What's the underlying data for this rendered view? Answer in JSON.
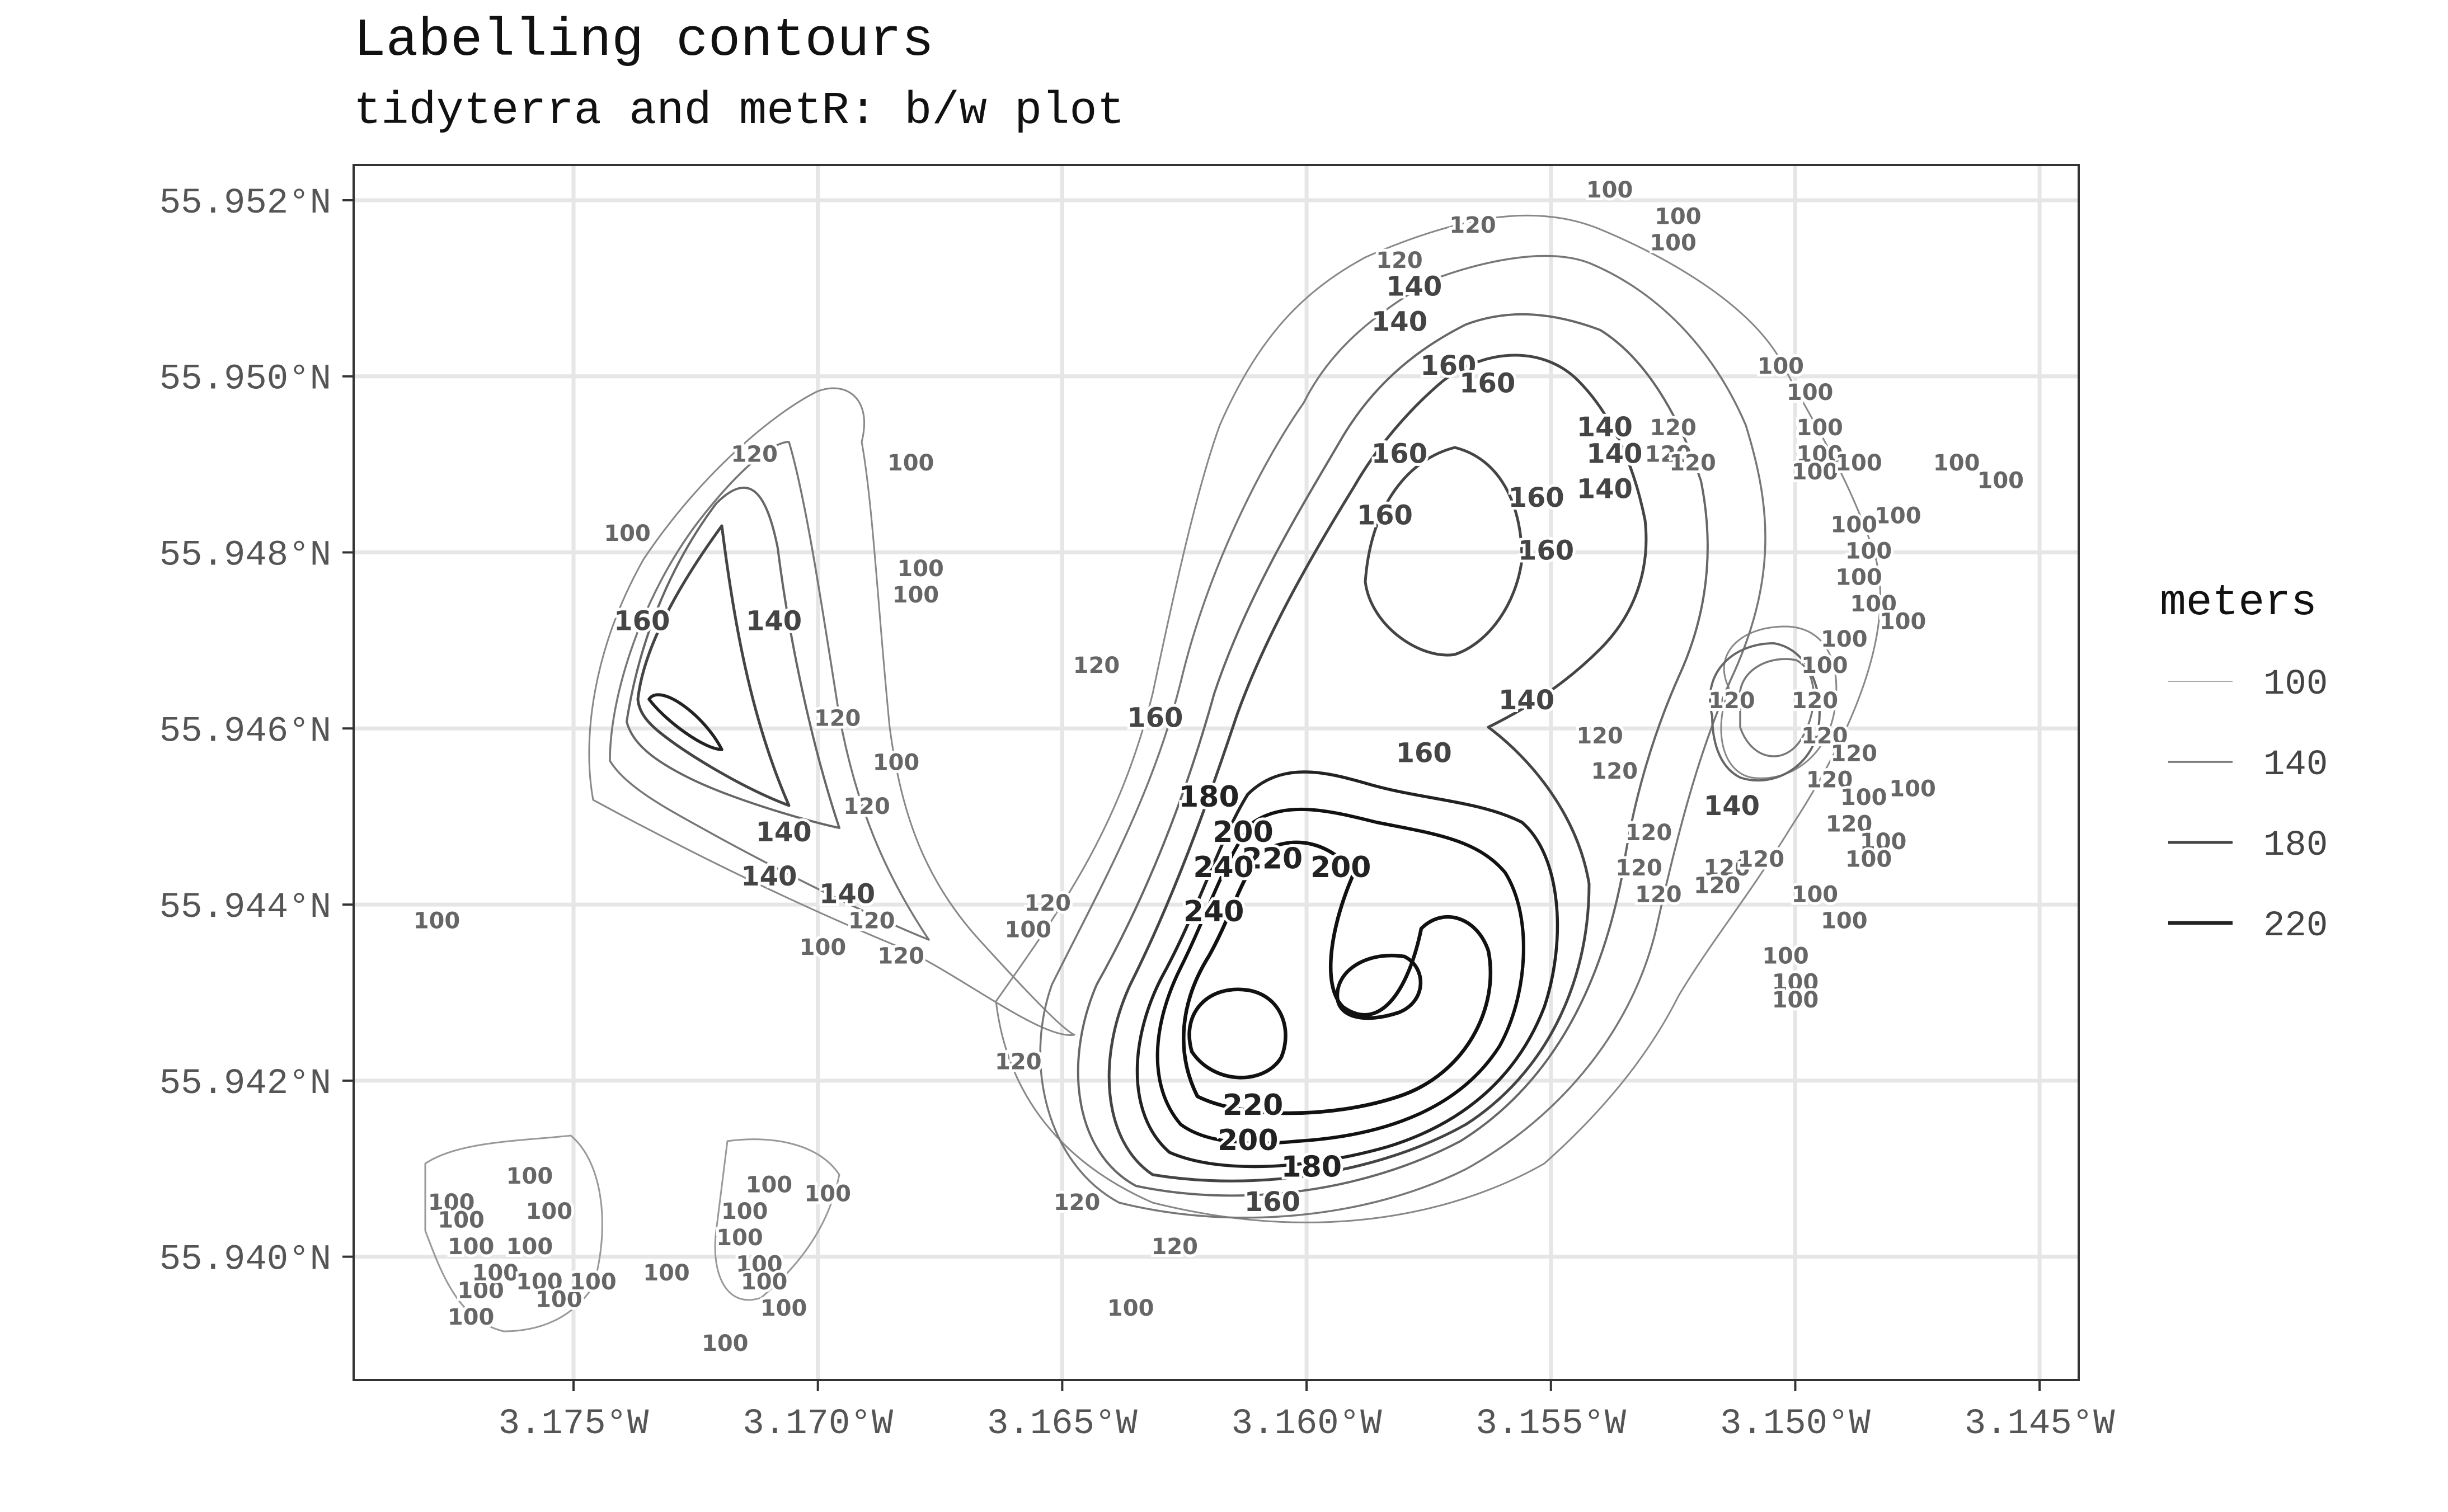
{
  "chart_data": {
    "type": "contour",
    "title": "Labelling contours",
    "subtitle": "tidyterra and metR: b/w plot",
    "x_ticks": [
      "3.175°W",
      "3.170°W",
      "3.165°W",
      "3.160°W",
      "3.155°W",
      "3.150°W",
      "3.145°W"
    ],
    "y_ticks": [
      "55.952°N",
      "55.950°N",
      "55.948°N",
      "55.946°N",
      "55.944°N",
      "55.942°N",
      "55.940°N"
    ],
    "xlim": [
      -3.1795,
      -3.1442
    ],
    "ylim": [
      55.9386,
      55.9524
    ],
    "grid": true,
    "legend": {
      "title": "meters",
      "position": "right",
      "entries": [
        {
          "label": "100",
          "level": 100
        },
        {
          "label": "140",
          "level": 140
        },
        {
          "label": "180",
          "level": 180
        },
        {
          "label": "220",
          "level": 220
        }
      ]
    },
    "colors": {
      "contour": "#333333",
      "grid": "#e6e6e6",
      "panel_border": "#333333"
    },
    "contour_levels": [
      100,
      120,
      140,
      160,
      180,
      200,
      220,
      240
    ],
    "contour_labels": [
      {
        "text": "100",
        "lon": -3.1778,
        "lat": 55.9438
      },
      {
        "text": "100",
        "lon": -3.1739,
        "lat": 55.9482
      },
      {
        "text": "120",
        "lon": -3.1713,
        "lat": 55.9491
      },
      {
        "text": "100",
        "lon": -3.1681,
        "lat": 55.949
      },
      {
        "text": "160",
        "lon": -3.1736,
        "lat": 55.9472
      },
      {
        "text": "140",
        "lon": -3.1709,
        "lat": 55.9472
      },
      {
        "text": "100",
        "lon": -3.1679,
        "lat": 55.9478
      },
      {
        "text": "100",
        "lon": -3.168,
        "lat": 55.9475
      },
      {
        "text": "120",
        "lon": -3.1696,
        "lat": 55.9461
      },
      {
        "text": "100",
        "lon": -3.1684,
        "lat": 55.9456
      },
      {
        "text": "120",
        "lon": -3.169,
        "lat": 55.9451
      },
      {
        "text": "140",
        "lon": -3.1707,
        "lat": 55.9448
      },
      {
        "text": "140",
        "lon": -3.171,
        "lat": 55.9443
      },
      {
        "text": "140",
        "lon": -3.1694,
        "lat": 55.9441
      },
      {
        "text": "120",
        "lon": -3.1689,
        "lat": 55.9438
      },
      {
        "text": "100",
        "lon": -3.1699,
        "lat": 55.9435
      },
      {
        "text": "120",
        "lon": -3.1683,
        "lat": 55.9434
      },
      {
        "text": "100",
        "lon": -3.1657,
        "lat": 55.9437
      },
      {
        "text": "120",
        "lon": -3.1653,
        "lat": 55.944
      },
      {
        "text": "120",
        "lon": -3.1643,
        "lat": 55.9467
      },
      {
        "text": "160",
        "lon": -3.1631,
        "lat": 55.9461
      },
      {
        "text": "180",
        "lon": -3.162,
        "lat": 55.9452
      },
      {
        "text": "200",
        "lon": -3.1613,
        "lat": 55.9448
      },
      {
        "text": "220",
        "lon": -3.1607,
        "lat": 55.9445
      },
      {
        "text": "240",
        "lon": -3.1617,
        "lat": 55.9444
      },
      {
        "text": "240",
        "lon": -3.1619,
        "lat": 55.9439
      },
      {
        "text": "200",
        "lon": -3.1593,
        "lat": 55.9444
      },
      {
        "text": "120",
        "lon": -3.1659,
        "lat": 55.9422
      },
      {
        "text": "220",
        "lon": -3.1611,
        "lat": 55.9417
      },
      {
        "text": "200",
        "lon": -3.1612,
        "lat": 55.9413
      },
      {
        "text": "180",
        "lon": -3.1599,
        "lat": 55.941
      },
      {
        "text": "160",
        "lon": -3.1607,
        "lat": 55.9406
      },
      {
        "text": "120",
        "lon": -3.1647,
        "lat": 55.9406
      },
      {
        "text": "120",
        "lon": -3.1627,
        "lat": 55.9401
      },
      {
        "text": "100",
        "lon": -3.1636,
        "lat": 55.9394
      },
      {
        "text": "120",
        "lon": -3.1566,
        "lat": 55.9517
      },
      {
        "text": "100",
        "lon": -3.1538,
        "lat": 55.9521
      },
      {
        "text": "100",
        "lon": -3.1524,
        "lat": 55.9518
      },
      {
        "text": "100",
        "lon": -3.1525,
        "lat": 55.9515
      },
      {
        "text": "120",
        "lon": -3.1581,
        "lat": 55.9513
      },
      {
        "text": "140",
        "lon": -3.1578,
        "lat": 55.951
      },
      {
        "text": "140",
        "lon": -3.1581,
        "lat": 55.9506
      },
      {
        "text": "160",
        "lon": -3.1571,
        "lat": 55.9501
      },
      {
        "text": "160",
        "lon": -3.1563,
        "lat": 55.9499
      },
      {
        "text": "160",
        "lon": -3.1581,
        "lat": 55.9491
      },
      {
        "text": "160",
        "lon": -3.1584,
        "lat": 55.9484
      },
      {
        "text": "160",
        "lon": -3.1553,
        "lat": 55.9486
      },
      {
        "text": "160",
        "lon": -3.1551,
        "lat": 55.948
      },
      {
        "text": "140",
        "lon": -3.1539,
        "lat": 55.9494
      },
      {
        "text": "140",
        "lon": -3.1537,
        "lat": 55.9491
      },
      {
        "text": "140",
        "lon": -3.1539,
        "lat": 55.9487
      },
      {
        "text": "120",
        "lon": -3.1525,
        "lat": 55.9494
      },
      {
        "text": "120",
        "lon": -3.1526,
        "lat": 55.9491
      },
      {
        "text": "120",
        "lon": -3.1521,
        "lat": 55.949
      },
      {
        "text": "100",
        "lon": -3.1503,
        "lat": 55.9501
      },
      {
        "text": "100",
        "lon": -3.1497,
        "lat": 55.9498
      },
      {
        "text": "100",
        "lon": -3.1495,
        "lat": 55.9494
      },
      {
        "text": "100",
        "lon": -3.1495,
        "lat": 55.9491
      },
      {
        "text": "100",
        "lon": -3.1496,
        "lat": 55.9489
      },
      {
        "text": "100",
        "lon": -3.1487,
        "lat": 55.949
      },
      {
        "text": "100",
        "lon": -3.1467,
        "lat": 55.949
      },
      {
        "text": "100",
        "lon": -3.1458,
        "lat": 55.9488
      },
      {
        "text": "100",
        "lon": -3.1479,
        "lat": 55.9484
      },
      {
        "text": "100",
        "lon": -3.1485,
        "lat": 55.948
      },
      {
        "text": "100",
        "lon": -3.1488,
        "lat": 55.9483
      },
      {
        "text": "100",
        "lon": -3.1487,
        "lat": 55.9477
      },
      {
        "text": "100",
        "lon": -3.1484,
        "lat": 55.9474
      },
      {
        "text": "100",
        "lon": -3.1478,
        "lat": 55.9472
      },
      {
        "text": "100",
        "lon": -3.149,
        "lat": 55.947
      },
      {
        "text": "100",
        "lon": -3.1494,
        "lat": 55.9467
      },
      {
        "text": "140",
        "lon": -3.1555,
        "lat": 55.9463
      },
      {
        "text": "160",
        "lon": -3.1576,
        "lat": 55.9457
      },
      {
        "text": "120",
        "lon": -3.154,
        "lat": 55.9459
      },
      {
        "text": "120",
        "lon": -3.1537,
        "lat": 55.9455
      },
      {
        "text": "120",
        "lon": -3.1513,
        "lat": 55.9463
      },
      {
        "text": "140",
        "lon": -3.1513,
        "lat": 55.9451
      },
      {
        "text": "120",
        "lon": -3.1496,
        "lat": 55.9463
      },
      {
        "text": "120",
        "lon": -3.1494,
        "lat": 55.9459
      },
      {
        "text": "120",
        "lon": -3.1488,
        "lat": 55.9457
      },
      {
        "text": "120",
        "lon": -3.1493,
        "lat": 55.9454
      },
      {
        "text": "100",
        "lon": -3.1476,
        "lat": 55.9453
      },
      {
        "text": "100",
        "lon": -3.1486,
        "lat": 55.9452
      },
      {
        "text": "120",
        "lon": -3.1489,
        "lat": 55.9449
      },
      {
        "text": "100",
        "lon": -3.1482,
        "lat": 55.9447
      },
      {
        "text": "100",
        "lon": -3.1485,
        "lat": 55.9445
      },
      {
        "text": "120",
        "lon": -3.153,
        "lat": 55.9448
      },
      {
        "text": "120",
        "lon": -3.1532,
        "lat": 55.9444
      },
      {
        "text": "120",
        "lon": -3.1514,
        "lat": 55.9444
      },
      {
        "text": "120",
        "lon": -3.1507,
        "lat": 55.9445
      },
      {
        "text": "120",
        "lon": -3.1528,
        "lat": 55.9441
      },
      {
        "text": "120",
        "lon": -3.1516,
        "lat": 55.9442
      },
      {
        "text": "100",
        "lon": -3.1496,
        "lat": 55.9441
      },
      {
        "text": "100",
        "lon": -3.149,
        "lat": 55.9438
      },
      {
        "text": "100",
        "lon": -3.1502,
        "lat": 55.9434
      },
      {
        "text": "100",
        "lon": -3.15,
        "lat": 55.9431
      },
      {
        "text": "100",
        "lon": -3.15,
        "lat": 55.9429
      },
      {
        "text": "100",
        "lon": -3.1775,
        "lat": 55.9406
      },
      {
        "text": "100",
        "lon": -3.1773,
        "lat": 55.9404
      },
      {
        "text": "100",
        "lon": -3.1755,
        "lat": 55.9405
      },
      {
        "text": "100",
        "lon": -3.1759,
        "lat": 55.9409
      },
      {
        "text": "100",
        "lon": -3.1771,
        "lat": 55.9401
      },
      {
        "text": "100",
        "lon": -3.1769,
        "lat": 55.9396
      },
      {
        "text": "100",
        "lon": -3.1771,
        "lat": 55.9393
      },
      {
        "text": "100",
        "lon": -3.1766,
        "lat": 55.9398
      },
      {
        "text": "100",
        "lon": -3.1759,
        "lat": 55.9401
      },
      {
        "text": "100",
        "lon": -3.1757,
        "lat": 55.9397
      },
      {
        "text": "100",
        "lon": -3.1753,
        "lat": 55.9395
      },
      {
        "text": "100",
        "lon": -3.1746,
        "lat": 55.9397
      },
      {
        "text": "100",
        "lon": -3.1731,
        "lat": 55.9398
      },
      {
        "text": "100",
        "lon": -3.1716,
        "lat": 55.9402
      },
      {
        "text": "100",
        "lon": -3.1715,
        "lat": 55.9405
      },
      {
        "text": "100",
        "lon": -3.171,
        "lat": 55.9408
      },
      {
        "text": "100",
        "lon": -3.1698,
        "lat": 55.9407
      },
      {
        "text": "100",
        "lon": -3.1712,
        "lat": 55.9399
      },
      {
        "text": "100",
        "lon": -3.1711,
        "lat": 55.9397
      },
      {
        "text": "100",
        "lon": -3.1707,
        "lat": 55.9394
      },
      {
        "text": "100",
        "lon": -3.1719,
        "lat": 55.939
      }
    ]
  }
}
